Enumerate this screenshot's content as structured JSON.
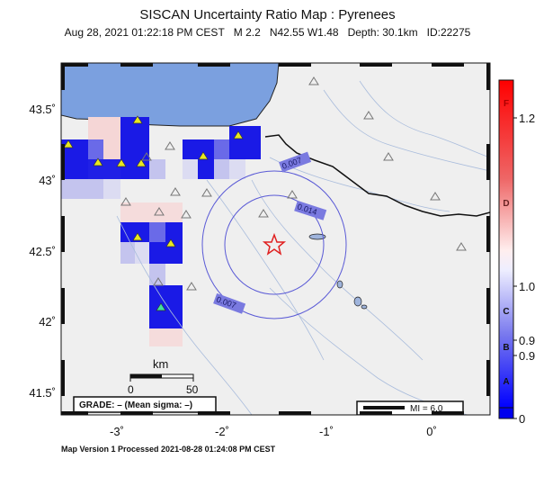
{
  "title": "SISCAN Uncertainty Ratio Map : Pyrenees",
  "subtitle": {
    "datetime": "Aug 28, 2021 01:22:18 PM CEST",
    "magnitude": "M 2.2",
    "location": "N42.55 W1.48",
    "depth": "Depth: 30.1km",
    "id": "ID:22275"
  },
  "axes": {
    "lon_ticks": [
      "-3˚",
      "-2˚",
      "-1˚",
      "0˚"
    ],
    "lat_ticks": [
      "43.5˚",
      "43˚",
      "42.5˚",
      "42˚",
      "41.5˚"
    ]
  },
  "scale_bar": {
    "unit": "km",
    "labels": [
      "0",
      "50"
    ]
  },
  "grade_box": "GRADE: – (Mean sigma: –)",
  "mi_box": "MI = 6.0",
  "contours": [
    "0.007",
    "0.014",
    "0.007"
  ],
  "colorbar": {
    "letters": [
      "F",
      "D",
      "C",
      "B",
      "A"
    ],
    "right_labels": [
      "1.2",
      "1.0",
      "0.9",
      "0.9",
      "0"
    ]
  },
  "footer": "Map Version 1 Processed 2021-08-28 01:24:08 PM CEST",
  "colors": {
    "land": "#efefef",
    "sea": "#7ba0df",
    "cell_strong": "#1a1ae6",
    "cell_mid": "#6a6ae8",
    "cell_light": "#c4c4ee",
    "epicenter": "#e02020",
    "contour": "#5a5ad6"
  }
}
